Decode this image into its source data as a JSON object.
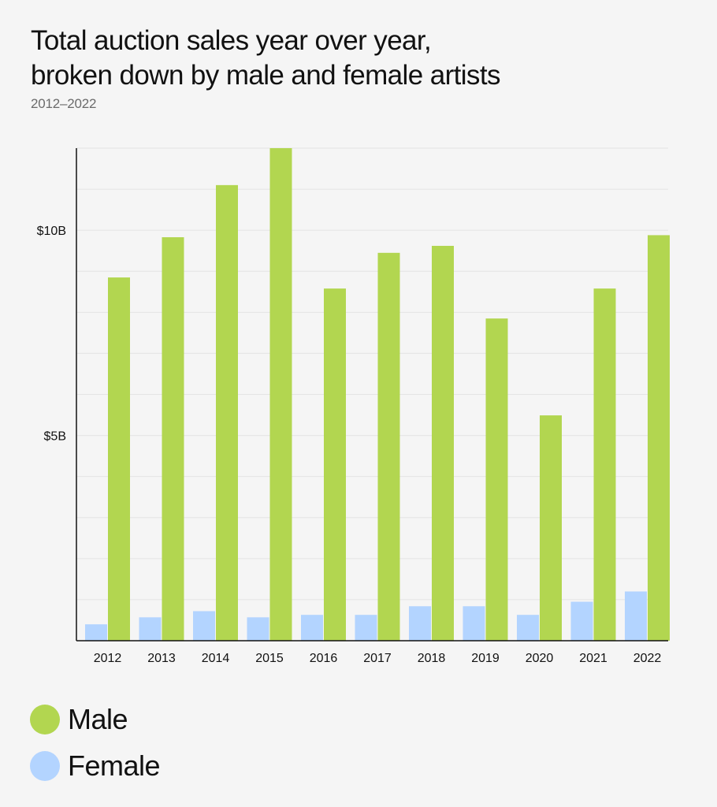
{
  "chart_data": {
    "type": "bar",
    "title_lines": [
      "Total auction sales year over year,",
      "broken down by male and female artists"
    ],
    "subtitle": "2012–2022",
    "categories": [
      "2012",
      "2013",
      "2014",
      "2015",
      "2016",
      "2017",
      "2018",
      "2019",
      "2020",
      "2021",
      "2022"
    ],
    "series": [
      {
        "name": "Female",
        "color": "#b3d4ff",
        "values": [
          0.4,
          0.57,
          0.72,
          0.57,
          0.63,
          0.63,
          0.84,
          0.84,
          0.63,
          0.95,
          1.2
        ]
      },
      {
        "name": "Male",
        "color": "#b2d650",
        "values": [
          8.85,
          9.83,
          11.1,
          12.0,
          8.58,
          9.45,
          9.62,
          7.85,
          5.49,
          8.58,
          9.88
        ]
      }
    ],
    "yticks": [
      {
        "value": 5,
        "label": "$5B"
      },
      {
        "value": 10,
        "label": "$10B"
      }
    ],
    "ylim": [
      0,
      12
    ],
    "grid_step": 1,
    "grid": true,
    "legend_position": "bottom-left",
    "axis_color": "#111111",
    "grid_color": "#e4e4e4"
  }
}
